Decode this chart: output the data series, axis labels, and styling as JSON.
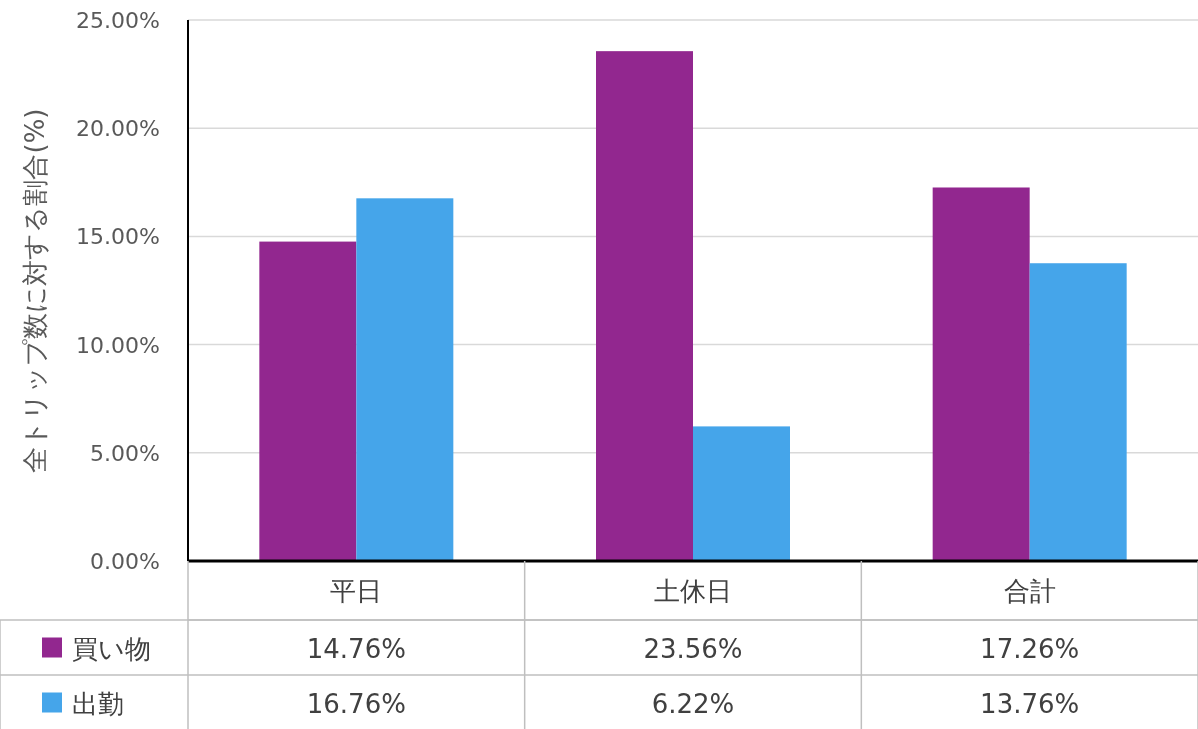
{
  "chart_data": {
    "type": "bar",
    "ylabel": "全トリップ数に対する割合(%)",
    "categories": [
      "平日",
      "土休日",
      "合計"
    ],
    "series": [
      {
        "name": "買い物",
        "color": "#92278f",
        "values": [
          14.76,
          23.56,
          17.26
        ],
        "value_labels": [
          "14.76%",
          "23.56%",
          "17.26%"
        ]
      },
      {
        "name": "出勤",
        "color": "#45a5ea",
        "values": [
          16.76,
          6.22,
          13.76
        ],
        "value_labels": [
          "16.76%",
          "6.22%",
          "13.76%"
        ]
      }
    ],
    "ylim": [
      0,
      25
    ],
    "yticks": [
      {
        "value": 0,
        "label": "0.00%"
      },
      {
        "value": 5,
        "label": "5.00%"
      },
      {
        "value": 10,
        "label": "10.00%"
      },
      {
        "value": 15,
        "label": "15.00%"
      },
      {
        "value": 20,
        "label": "20.00%"
      },
      {
        "value": 25,
        "label": "25.00%"
      }
    ],
    "grid": "y",
    "legend": "bottom"
  }
}
